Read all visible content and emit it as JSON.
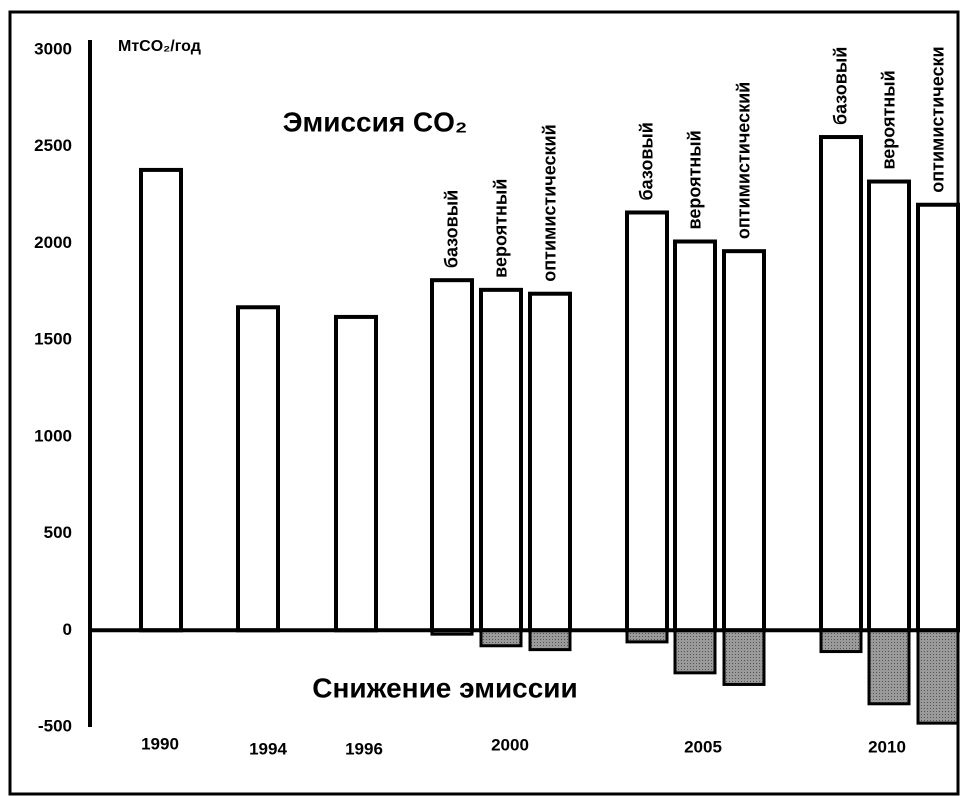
{
  "chart_data": {
    "type": "bar",
    "title": "Эмиссия CO₂",
    "y_label": "МтCO₂/год",
    "annotation": "Снижение эмиссии",
    "ylim": [
      -500,
      3000
    ],
    "yticks": [
      -500,
      0,
      500,
      1000,
      1500,
      2000,
      2500,
      3000
    ],
    "color": "#ffffff",
    "reduction_color": "#a0a0a0",
    "groups": [
      {
        "label": "1990",
        "bars": [
          {
            "value": 2380
          }
        ]
      },
      {
        "label": "1994",
        "bars": [
          {
            "value": 1670
          }
        ]
      },
      {
        "label": "1996",
        "bars": [
          {
            "value": 1620
          }
        ]
      },
      {
        "label": "2000",
        "bars": [
          {
            "name": "базовый",
            "value": 1810,
            "reduction": -20
          },
          {
            "name": "вероятный",
            "value": 1760,
            "reduction": -80
          },
          {
            "name": "оптимистический",
            "value": 1740,
            "reduction": -100
          }
        ]
      },
      {
        "label": "2005",
        "bars": [
          {
            "name": "базовый",
            "value": 2160,
            "reduction": -60
          },
          {
            "name": "вероятный",
            "value": 2010,
            "reduction": -220
          },
          {
            "name": "оптимистический",
            "value": 1960,
            "reduction": -280
          }
        ]
      },
      {
        "label": "2010",
        "bars": [
          {
            "name": "базовый",
            "value": 2550,
            "reduction": -110
          },
          {
            "name": "вероятный",
            "value": 2320,
            "reduction": -380
          },
          {
            "name": "оптимистически",
            "value": 2200,
            "reduction": -480
          }
        ]
      }
    ]
  }
}
